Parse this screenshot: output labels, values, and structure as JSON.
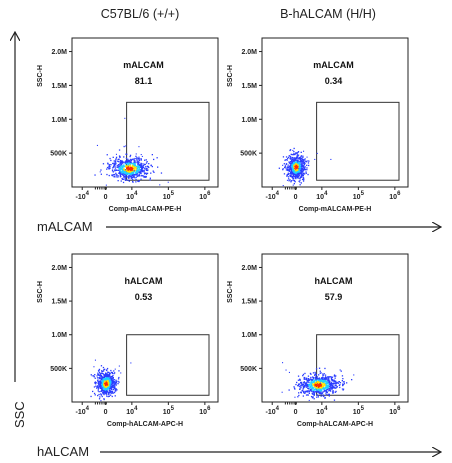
{
  "column_titles": [
    "C57BL/6 (+/+)",
    "B-hALCAM (H/H)"
  ],
  "axis_labels": {
    "row1_x": "mALCAM",
    "row2_x": "hALCAM",
    "y": "SSC"
  },
  "colors": {
    "axis": "#222222",
    "gate": "#333333",
    "dot_low": "#2a3cff",
    "dot_mid": "#20d0ff",
    "dot_high": "#ffe000",
    "dot_hot": "#ff2a00"
  },
  "chart_data": [
    {
      "type": "scatter",
      "title": "C57BL/6 (+/+)",
      "xlabel": "Comp-mALCAM-PE-H",
      "ylabel": "SSC-H",
      "x_ticks": [
        "-10^4",
        "0",
        "10^4",
        "10^5",
        "10^6"
      ],
      "y_ticks": [
        "500K",
        "1.0M",
        "1.5M",
        "2.0M"
      ],
      "ylim": [
        0,
        2200000
      ],
      "gate": {
        "name": "mALCAM",
        "value": "81.1",
        "x_range": [
          "10^3.2",
          "10^6"
        ],
        "y_range": [
          100000,
          1250000
        ]
      },
      "population": {
        "x_center_log": 3.6,
        "y_center": 280000
      }
    },
    {
      "type": "scatter",
      "title": "B-hALCAM (H/H)",
      "xlabel": "Comp-mALCAM-PE-H",
      "ylabel": "SSC-H",
      "x_ticks": [
        "-10^4",
        "0",
        "10^4",
        "10^5",
        "10^6"
      ],
      "y_ticks": [
        "500K",
        "1.0M",
        "1.5M",
        "2.0M"
      ],
      "ylim": [
        0,
        2200000
      ],
      "gate": {
        "name": "mALCAM",
        "value": "0.34",
        "x_range": [
          "10^3.2",
          "10^6"
        ],
        "y_range": [
          100000,
          1250000
        ]
      },
      "population": {
        "x_center_log": 0,
        "y_center": 300000
      }
    },
    {
      "type": "scatter",
      "title": "",
      "xlabel": "Comp-hALCAM-APC-H",
      "ylabel": "SSC-H",
      "x_ticks": [
        "-10^4",
        "0",
        "10^4",
        "10^5",
        "10^6"
      ],
      "y_ticks": [
        "500K",
        "1.0M",
        "1.5M",
        "2.0M"
      ],
      "ylim": [
        0,
        2200000
      ],
      "gate": {
        "name": "hALCAM",
        "value": "0.53",
        "x_range": [
          "10^3.2",
          "10^6"
        ],
        "y_range": [
          100000,
          1000000
        ]
      },
      "population": {
        "x_center_log": 0,
        "y_center": 280000
      }
    },
    {
      "type": "scatter",
      "title": "",
      "xlabel": "Comp-hALCAM-APC-H",
      "ylabel": "SSC-H",
      "x_ticks": [
        "-10^4",
        "0",
        "10^4",
        "10^5",
        "10^6"
      ],
      "y_ticks": [
        "500K",
        "1.0M",
        "1.5M",
        "2.0M"
      ],
      "ylim": [
        0,
        2200000
      ],
      "gate": {
        "name": "hALCAM",
        "value": "57.9",
        "x_range": [
          "10^3.2",
          "10^6"
        ],
        "y_range": [
          100000,
          1000000
        ]
      },
      "population": {
        "x_center_log": 3.4,
        "y_center": 260000
      }
    }
  ]
}
